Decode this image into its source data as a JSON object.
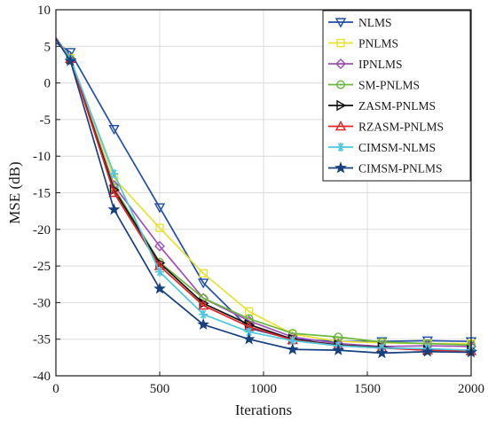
{
  "chart_data": {
    "type": "line",
    "xlabel": "Iterations",
    "ylabel": "MSE (dB)",
    "xlim": [
      0,
      2000
    ],
    "ylim": [
      -40,
      10
    ],
    "xticks": [
      0,
      500,
      1000,
      1500,
      2000
    ],
    "yticks": [
      10,
      5,
      0,
      -5,
      -10,
      -15,
      -20,
      -25,
      -30,
      -35,
      -40
    ],
    "grid": true,
    "legend_position": "top-right",
    "x": [
      0,
      70,
      280,
      500,
      710,
      930,
      1140,
      1360,
      1570,
      1790,
      2000
    ],
    "series": [
      {
        "name": "NLMS",
        "color": "#1f4fa8",
        "marker": "triangle-down",
        "values": [
          5.5,
          4.2,
          -6.3,
          -17.0,
          -27.3,
          -33.5,
          -35.0,
          -35.3,
          -35.3,
          -35.2,
          -35.3
        ]
      },
      {
        "name": "PNLMS",
        "color": "#e8e233",
        "marker": "square",
        "values": [
          6.2,
          3.4,
          -13.0,
          -19.8,
          -26.0,
          -31.2,
          -34.3,
          -35.3,
          -35.5,
          -35.6,
          -35.6
        ]
      },
      {
        "name": "IPNLMS",
        "color": "#a050b8",
        "marker": "diamond",
        "values": [
          6.2,
          3.2,
          -14.0,
          -22.3,
          -29.4,
          -32.5,
          -34.7,
          -35.6,
          -36.0,
          -35.9,
          -36.0
        ]
      },
      {
        "name": "SM-PNLMS",
        "color": "#6ab83c",
        "marker": "circle",
        "values": [
          6.0,
          3.2,
          -14.3,
          -24.5,
          -29.4,
          -32.2,
          -34.2,
          -34.7,
          -35.4,
          -35.6,
          -35.8
        ]
      },
      {
        "name": "ZASM-PNLMS",
        "color": "#111111",
        "marker": "triangle-right",
        "values": [
          6.0,
          3.3,
          -14.6,
          -24.6,
          -30.1,
          -33.0,
          -35.0,
          -35.8,
          -36.1,
          -36.5,
          -36.5
        ]
      },
      {
        "name": "RZASM-PNLMS",
        "color": "#e52222",
        "marker": "triangle-up",
        "values": [
          6.0,
          3.3,
          -15.0,
          -25.0,
          -30.4,
          -33.3,
          -35.1,
          -35.9,
          -36.2,
          -36.5,
          -36.6
        ]
      },
      {
        "name": "CIMSM-NLMS",
        "color": "#4cc8e0",
        "marker": "asterisk",
        "values": [
          6.0,
          3.3,
          -12.4,
          -25.8,
          -31.6,
          -34.0,
          -35.2,
          -35.9,
          -36.2,
          -36.3,
          -36.5
        ]
      },
      {
        "name": "CIMSM-PNLMS",
        "color": "#17407f",
        "marker": "star",
        "values": [
          6.0,
          3.0,
          -17.3,
          -28.1,
          -33.0,
          -35.0,
          -36.4,
          -36.5,
          -36.9,
          -36.7,
          -36.8
        ]
      }
    ]
  }
}
